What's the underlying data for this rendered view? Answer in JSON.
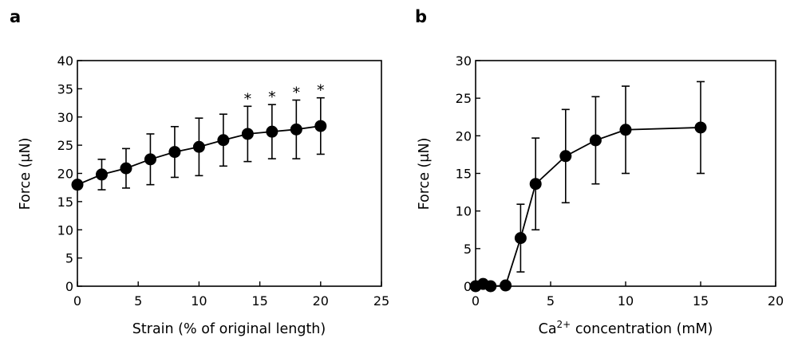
{
  "chart_data": [
    {
      "type": "line",
      "panel_label": "a",
      "xlabel": "Strain (% of original length)",
      "ylabel": "Force (μN)",
      "xlim": [
        0,
        25
      ],
      "ylim": [
        0,
        40
      ],
      "x_ticks": [
        0,
        5,
        10,
        15,
        20,
        25
      ],
      "y_ticks": [
        0,
        5,
        10,
        15,
        20,
        25,
        30,
        35,
        40
      ],
      "series": [
        {
          "name": "Force",
          "x": [
            0,
            2,
            4,
            6,
            8,
            10,
            12,
            14,
            16,
            18,
            20
          ],
          "y": [
            18.0,
            19.8,
            20.9,
            22.5,
            23.8,
            24.7,
            25.9,
            27.0,
            27.4,
            27.8,
            28.4
          ],
          "error": [
            0,
            2.7,
            3.5,
            4.5,
            4.5,
            5.1,
            4.6,
            4.9,
            4.8,
            5.2,
            5.0
          ]
        }
      ],
      "annotations": [
        {
          "x": 14,
          "text": "*"
        },
        {
          "x": 16,
          "text": "*"
        },
        {
          "x": 18,
          "text": "*"
        },
        {
          "x": 20,
          "text": "*"
        }
      ]
    },
    {
      "type": "line",
      "panel_label": "b",
      "xlabel_prefix": "Ca",
      "xlabel_sup": "2+",
      "xlabel_suffix": " concentration (mM)",
      "ylabel": "Force (μN)",
      "xlim": [
        0,
        20
      ],
      "ylim": [
        0,
        30
      ],
      "x_ticks": [
        0,
        5,
        10,
        15,
        20
      ],
      "y_ticks": [
        0,
        5,
        10,
        15,
        20,
        25,
        30
      ],
      "series": [
        {
          "name": "Force",
          "x": [
            0,
            0.5,
            1,
            2,
            3,
            4,
            6,
            8,
            10,
            15
          ],
          "y": [
            0.0,
            0.3,
            0.0,
            0.1,
            6.4,
            13.6,
            17.3,
            19.4,
            20.8,
            21.1
          ],
          "error": [
            0,
            0,
            0,
            0,
            4.5,
            6.1,
            6.2,
            5.8,
            5.8,
            6.1
          ]
        }
      ],
      "annotations": []
    }
  ]
}
